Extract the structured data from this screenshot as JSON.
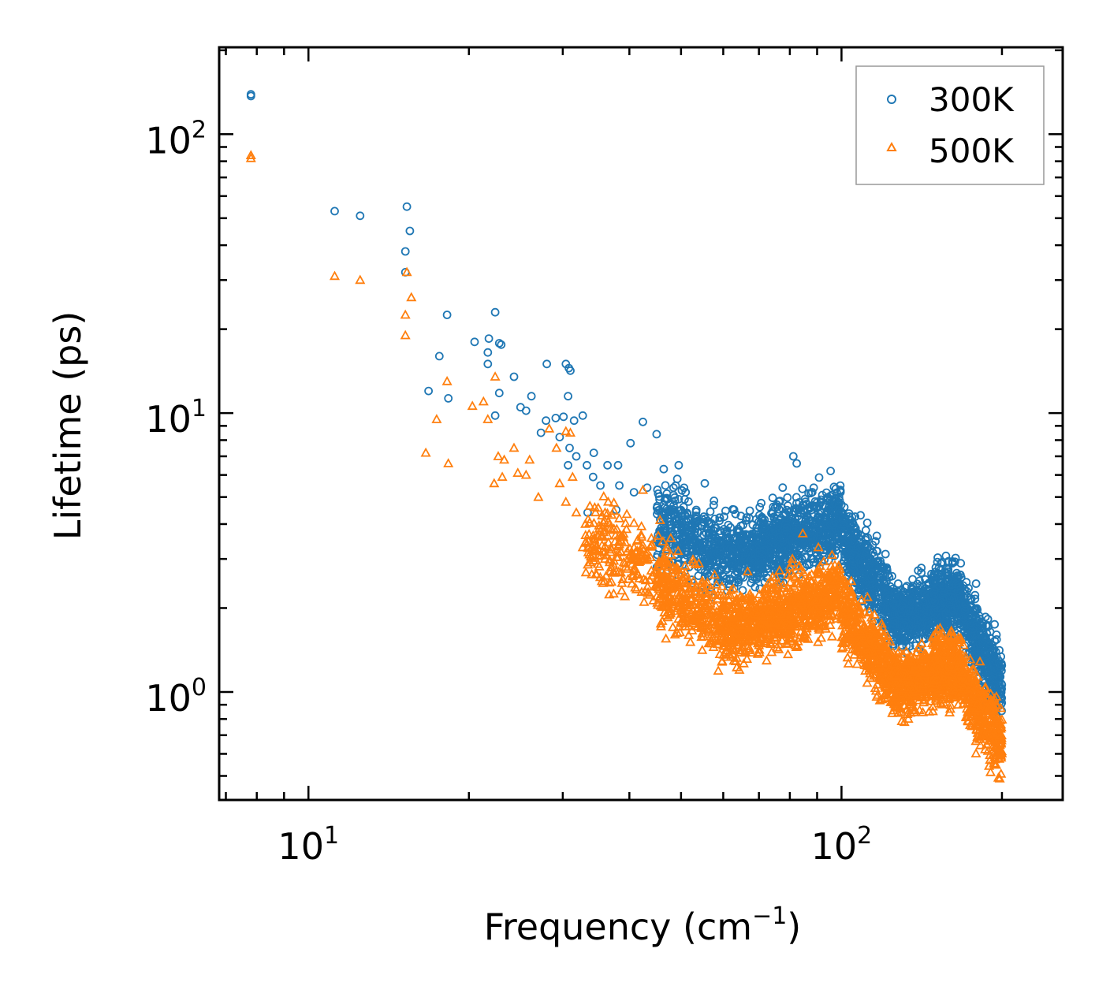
{
  "chart_data": {
    "type": "scatter",
    "title": "",
    "xlabel": "Frequency (cm",
    "xlabel_sup": "−1",
    "xlabel_close": ")",
    "ylabel": "Lifetime (ps)",
    "xscale": "log",
    "yscale": "log",
    "xlim": [
      6.8,
      260
    ],
    "ylim": [
      0.41,
      205
    ],
    "x_ticks": [
      {
        "value": 10,
        "base": "10",
        "exp": "1"
      },
      {
        "value": 100,
        "base": "10",
        "exp": "2"
      }
    ],
    "y_ticks": [
      {
        "value": 1,
        "base": "10",
        "exp": "0"
      },
      {
        "value": 10,
        "base": "10",
        "exp": "1"
      },
      {
        "value": 100,
        "base": "10",
        "exp": "2"
      }
    ],
    "legend_position": "top-right",
    "series": [
      {
        "name": "300K",
        "marker": "circle",
        "color": "#1f77b4",
        "discrete_points": [
          [
            7.8,
            137
          ],
          [
            7.8,
            139
          ],
          [
            11.2,
            53
          ],
          [
            12.5,
            51
          ],
          [
            15.3,
            55
          ],
          [
            15.2,
            38
          ],
          [
            15.5,
            45
          ],
          [
            15.2,
            32
          ],
          [
            18.2,
            22.5
          ],
          [
            17.6,
            16
          ],
          [
            16.8,
            12
          ],
          [
            18.3,
            11.3
          ],
          [
            20.5,
            18
          ],
          [
            21.8,
            18.5
          ],
          [
            21.7,
            16.5
          ],
          [
            21.7,
            15
          ],
          [
            22.4,
            23
          ],
          [
            22.8,
            17.8
          ],
          [
            23.0,
            17.6
          ],
          [
            24.3,
            13.5
          ],
          [
            22.8,
            11.8
          ],
          [
            22.4,
            9.8
          ],
          [
            25.0,
            10.5
          ],
          [
            25.6,
            10.2
          ],
          [
            26.2,
            11.5
          ],
          [
            27.3,
            8.5
          ],
          [
            27.9,
            9.4
          ],
          [
            28.0,
            15
          ],
          [
            29.1,
            9.6
          ],
          [
            29.6,
            8.2
          ],
          [
            30.4,
            15
          ],
          [
            30.8,
            14.5
          ],
          [
            31.0,
            14.2
          ],
          [
            30.7,
            11.5
          ],
          [
            30.1,
            9.7
          ],
          [
            30.9,
            7.5
          ],
          [
            30.7,
            6.5
          ],
          [
            31.5,
            9.4
          ],
          [
            32.7,
            9.8
          ],
          [
            31.8,
            7.0
          ],
          [
            33.3,
            6.5
          ],
          [
            34.3,
            7.2
          ],
          [
            36.4,
            6.5
          ],
          [
            38.1,
            6.5
          ],
          [
            40.2,
            7.8
          ],
          [
            42.4,
            9.3
          ],
          [
            45.0,
            8.4
          ],
          [
            46.4,
            6.3
          ],
          [
            49.5,
            6.5
          ],
          [
            51.0,
            5.2
          ],
          [
            55.4,
            5.6
          ],
          [
            81.2,
            7.0
          ],
          [
            82.4,
            6.6
          ],
          [
            88.7,
            5.4
          ],
          [
            95.4,
            6.2
          ],
          [
            38.3,
            5.5
          ],
          [
            34.2,
            5.9
          ],
          [
            35.3,
            5.5
          ],
          [
            37.8,
            4.5
          ],
          [
            33.4,
            4.4
          ],
          [
            40.8,
            5.2
          ],
          [
            43.2,
            5.4
          ],
          [
            108.6,
            4.3
          ],
          [
            111.1,
            3.8
          ]
        ],
        "bands": [
          {
            "x": [
              45,
              58
            ],
            "center": [
              4.0,
              3.3
            ],
            "spread": 1.35,
            "density": 320
          },
          {
            "x": [
              58,
              70
            ],
            "center": [
              3.1,
              3.2
            ],
            "spread": 1.3,
            "density": 300
          },
          {
            "x": [
              70,
              100
            ],
            "center": [
              3.3,
              4.2
            ],
            "spread": 1.3,
            "density": 700
          },
          {
            "x": [
              100,
              125
            ],
            "center": [
              3.6,
              2.0
            ],
            "spread": 1.3,
            "density": 450
          },
          {
            "x": [
              125,
              148
            ],
            "center": [
              1.85,
              2.0
            ],
            "spread": 1.25,
            "density": 420
          },
          {
            "x": [
              148,
              168
            ],
            "center": [
              2.1,
              2.2
            ],
            "spread": 1.3,
            "density": 380
          },
          {
            "x": [
              168,
              200
            ],
            "center": [
              2.0,
              1.05
            ],
            "spread": 1.3,
            "density": 380
          }
        ]
      },
      {
        "name": "500K",
        "marker": "triangle",
        "color": "#ff7f0e",
        "discrete_points": [
          [
            7.8,
            84
          ],
          [
            7.8,
            82
          ],
          [
            11.2,
            31
          ],
          [
            12.5,
            30
          ],
          [
            15.3,
            32
          ],
          [
            15.6,
            26
          ],
          [
            15.2,
            22.5
          ],
          [
            15.2,
            19
          ],
          [
            16.6,
            7.2
          ],
          [
            17.4,
            9.5
          ],
          [
            18.2,
            13
          ],
          [
            18.3,
            6.6
          ],
          [
            20.3,
            10.6
          ],
          [
            21.3,
            11
          ],
          [
            21.7,
            9.5
          ],
          [
            22.4,
            13.5
          ],
          [
            22.7,
            7.0
          ],
          [
            23.3,
            6.8
          ],
          [
            22.3,
            5.6
          ],
          [
            23.1,
            5.9
          ],
          [
            24.3,
            7.5
          ],
          [
            24.7,
            6.1
          ],
          [
            25.6,
            6.0
          ],
          [
            26.0,
            6.8
          ],
          [
            27.0,
            5.0
          ],
          [
            28.3,
            8.8
          ],
          [
            29.2,
            7.5
          ],
          [
            29.6,
            5.6
          ],
          [
            30.4,
            8.6
          ],
          [
            31.0,
            8.5
          ],
          [
            31.3,
            5.9
          ],
          [
            30.4,
            4.8
          ],
          [
            31.8,
            4.4
          ],
          [
            32.7,
            3.3
          ],
          [
            34.3,
            3.2
          ],
          [
            36.0,
            3.0
          ],
          [
            38.2,
            2.7
          ],
          [
            40.6,
            2.6
          ],
          [
            42.4,
            5.3
          ],
          [
            46.2,
            2.9
          ],
          [
            84.6,
            3.7
          ],
          [
            90.5,
            3.3
          ],
          [
            96.0,
            3.1
          ],
          [
            104.3,
            2.5
          ],
          [
            130.0,
            0.95
          ],
          [
            131.2,
            0.78
          ]
        ],
        "bands": [
          {
            "x": [
              33,
              45
            ],
            "center": [
              3.6,
              2.7
            ],
            "spread": 1.35,
            "density": 200
          },
          {
            "x": [
              45,
              58
            ],
            "center": [
              2.6,
              1.8
            ],
            "spread": 1.35,
            "density": 300
          },
          {
            "x": [
              58,
              70
            ],
            "center": [
              1.7,
              1.75
            ],
            "spread": 1.3,
            "density": 300
          },
          {
            "x": [
              70,
              100
            ],
            "center": [
              1.8,
              2.3
            ],
            "spread": 1.3,
            "density": 650
          },
          {
            "x": [
              100,
              125
            ],
            "center": [
              2.0,
              1.1
            ],
            "spread": 1.3,
            "density": 420
          },
          {
            "x": [
              125,
              148
            ],
            "center": [
              1.05,
              1.15
            ],
            "spread": 1.25,
            "density": 400
          },
          {
            "x": [
              148,
              168
            ],
            "center": [
              1.2,
              1.25
            ],
            "spread": 1.3,
            "density": 350
          },
          {
            "x": [
              168,
              200
            ],
            "center": [
              1.1,
              0.65
            ],
            "spread": 1.3,
            "density": 360
          }
        ]
      }
    ]
  }
}
